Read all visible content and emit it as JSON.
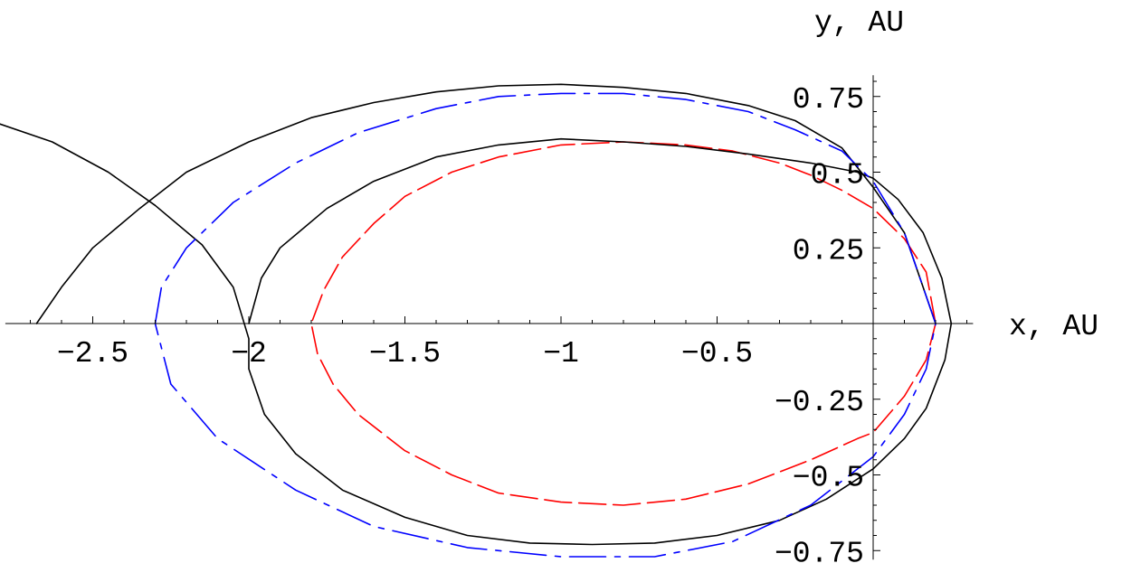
{
  "chart_data": {
    "type": "line",
    "title": "",
    "xlabel": "x, AU",
    "ylabel": "y, AU",
    "xlim": [
      -2.78,
      0.32
    ],
    "ylim": [
      -0.78,
      0.82
    ],
    "grid": false,
    "x_ticks": {
      "values": [
        -2.5,
        -2,
        -1.5,
        -1,
        -0.5
      ],
      "labels": [
        "−2.5",
        "−2",
        "−1.5",
        "−1",
        "−0.5"
      ]
    },
    "y_ticks": {
      "values": [
        0.75,
        0.5,
        0.25,
        -0.25,
        -0.5,
        -0.75
      ],
      "labels": [
        "0.75",
        "0.5",
        "0.25",
        "−0.25",
        "−0.5",
        "−0.75"
      ]
    },
    "series": [
      {
        "style": "dashed",
        "color": "#ff0000",
        "points": [
          [
            0.2,
            0.0
          ],
          [
            0.17,
            0.17
          ],
          [
            0.1,
            0.28
          ],
          [
            0.0,
            0.38
          ],
          [
            -0.1,
            0.44
          ],
          [
            -0.2,
            0.49
          ],
          [
            -0.3,
            0.53
          ],
          [
            -0.45,
            0.57
          ],
          [
            -0.6,
            0.59
          ],
          [
            -0.8,
            0.6
          ],
          [
            -1.0,
            0.59
          ],
          [
            -1.2,
            0.55
          ],
          [
            -1.35,
            0.5
          ],
          [
            -1.5,
            0.42
          ],
          [
            -1.6,
            0.33
          ],
          [
            -1.7,
            0.22
          ],
          [
            -1.76,
            0.11
          ],
          [
            -1.8,
            0.0
          ],
          [
            -1.78,
            -0.1
          ],
          [
            -1.73,
            -0.2
          ],
          [
            -1.65,
            -0.3
          ],
          [
            -1.5,
            -0.42
          ],
          [
            -1.35,
            -0.5
          ],
          [
            -1.2,
            -0.56
          ],
          [
            -1.0,
            -0.59
          ],
          [
            -0.8,
            -0.6
          ],
          [
            -0.6,
            -0.58
          ],
          [
            -0.4,
            -0.53
          ],
          [
            -0.2,
            -0.45
          ],
          [
            -0.05,
            -0.38
          ],
          [
            0.0,
            -0.36
          ],
          [
            0.1,
            -0.24
          ],
          [
            0.17,
            -0.12
          ],
          [
            0.2,
            0.0
          ]
        ]
      },
      {
        "style": "solid",
        "color": "#000000",
        "points": [
          [
            -2.0,
            0.0
          ],
          [
            -1.96,
            0.15
          ],
          [
            -1.9,
            0.25
          ],
          [
            -1.75,
            0.38
          ],
          [
            -1.6,
            0.47
          ],
          [
            -1.4,
            0.55
          ],
          [
            -1.2,
            0.59
          ],
          [
            -1.0,
            0.61
          ],
          [
            -0.8,
            0.6
          ],
          [
            -0.6,
            0.585
          ],
          [
            -0.4,
            0.56
          ],
          [
            -0.2,
            0.53
          ],
          [
            -0.05,
            0.5
          ],
          [
            0.0,
            0.48
          ],
          [
            0.08,
            0.41
          ],
          [
            0.16,
            0.3
          ],
          [
            0.22,
            0.15
          ],
          [
            0.25,
            0.0
          ],
          [
            0.23,
            -0.12
          ],
          [
            0.17,
            -0.28
          ],
          [
            0.1,
            -0.38
          ],
          [
            0.0,
            -0.48
          ],
          [
            -0.15,
            -0.58
          ],
          [
            -0.3,
            -0.65
          ],
          [
            -0.5,
            -0.7
          ],
          [
            -0.7,
            -0.725
          ],
          [
            -0.9,
            -0.73
          ],
          [
            -1.1,
            -0.725
          ],
          [
            -1.3,
            -0.7
          ],
          [
            -1.5,
            -0.64
          ],
          [
            -1.7,
            -0.55
          ],
          [
            -1.85,
            -0.43
          ],
          [
            -1.95,
            -0.3
          ],
          [
            -2.0,
            -0.15
          ],
          [
            -2.0,
            -0.05
          ],
          [
            -2.05,
            0.12
          ],
          [
            -2.15,
            0.26
          ],
          [
            -2.3,
            0.39
          ],
          [
            -2.45,
            0.5
          ],
          [
            -2.63,
            0.6
          ],
          [
            -2.8,
            0.66
          ]
        ]
      },
      {
        "style": "solid",
        "color": "#000000",
        "points": [
          [
            -2.68,
            0.0
          ],
          [
            -2.6,
            0.12
          ],
          [
            -2.5,
            0.25
          ],
          [
            -2.35,
            0.38
          ],
          [
            -2.2,
            0.5
          ],
          [
            -2.0,
            0.6
          ],
          [
            -1.8,
            0.68
          ],
          [
            -1.6,
            0.73
          ],
          [
            -1.4,
            0.765
          ],
          [
            -1.2,
            0.785
          ],
          [
            -1.0,
            0.79
          ],
          [
            -0.8,
            0.78
          ],
          [
            -0.6,
            0.76
          ],
          [
            -0.4,
            0.72
          ],
          [
            -0.25,
            0.67
          ],
          [
            -0.1,
            0.58
          ],
          [
            0.0,
            0.45
          ],
          [
            0.1,
            0.3
          ],
          [
            0.2,
            0.0
          ]
        ]
      },
      {
        "style": "dash-dot",
        "color": "#0000ff",
        "points": [
          [
            -2.3,
            0.0
          ],
          [
            -2.28,
            0.12
          ],
          [
            -2.2,
            0.25
          ],
          [
            -2.05,
            0.4
          ],
          [
            -1.85,
            0.53
          ],
          [
            -1.65,
            0.63
          ],
          [
            -1.4,
            0.71
          ],
          [
            -1.2,
            0.75
          ],
          [
            -1.0,
            0.76
          ],
          [
            -0.8,
            0.76
          ],
          [
            -0.6,
            0.74
          ],
          [
            -0.4,
            0.7
          ],
          [
            -0.25,
            0.64
          ],
          [
            -0.1,
            0.57
          ],
          [
            0.0,
            0.47
          ],
          [
            0.1,
            0.3
          ],
          [
            0.2,
            0.0
          ],
          [
            0.17,
            -0.15
          ],
          [
            0.1,
            -0.3
          ],
          [
            0.0,
            -0.44
          ],
          [
            -0.2,
            -0.6
          ],
          [
            -0.45,
            -0.72
          ],
          [
            -0.7,
            -0.77
          ],
          [
            -1.0,
            -0.77
          ],
          [
            -1.3,
            -0.74
          ],
          [
            -1.6,
            -0.67
          ],
          [
            -1.85,
            -0.55
          ],
          [
            -2.1,
            -0.38
          ],
          [
            -2.25,
            -0.2
          ],
          [
            -2.3,
            0.0
          ]
        ]
      }
    ]
  }
}
